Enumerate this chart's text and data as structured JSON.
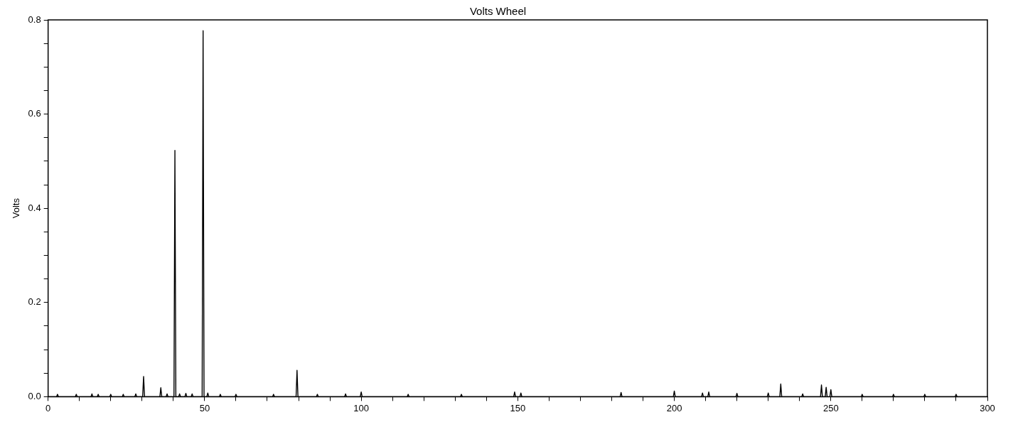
{
  "chart_data": {
    "type": "line",
    "title": "Volts Wheel",
    "ylabel": "Volts",
    "xlim": [
      0,
      300
    ],
    "xticks": [
      0,
      {
        "value": 10,
        "label": null
      },
      {
        "value": 20,
        "label": null
      },
      {
        "value": 30,
        "label": null
      },
      {
        "value": 40,
        "label": null
      },
      50,
      {
        "value": 60,
        "label": null
      },
      {
        "value": 70,
        "label": null
      },
      {
        "value": 80,
        "label": null
      },
      {
        "value": 90,
        "label": null
      },
      100,
      {
        "value": 110,
        "label": null
      },
      {
        "value": 120,
        "label": null
      },
      {
        "value": 130,
        "label": null
      },
      {
        "value": 140,
        "label": null
      },
      150,
      {
        "value": 160,
        "label": null
      },
      {
        "value": 170,
        "label": null
      },
      {
        "value": 180,
        "label": null
      },
      {
        "value": 190,
        "label": null
      },
      200,
      {
        "value": 210,
        "label": null
      },
      {
        "value": 220,
        "label": null
      },
      {
        "value": 230,
        "label": null
      },
      {
        "value": 240,
        "label": null
      },
      250,
      {
        "value": 260,
        "label": null
      },
      {
        "value": 270,
        "label": null
      },
      {
        "value": 280,
        "label": null
      },
      {
        "value": 290,
        "label": null
      },
      300
    ],
    "ylim": [
      0,
      0.8
    ],
    "yticks": [
      {
        "value": 0,
        "label": "0.0"
      },
      {
        "value": 0.05,
        "label": null
      },
      {
        "value": 0.1,
        "label": null
      },
      {
        "value": 0.15,
        "label": null
      },
      0.2,
      {
        "value": 0.25,
        "label": null
      },
      {
        "value": 0.3,
        "label": null
      },
      {
        "value": 0.35,
        "label": null
      },
      0.4,
      {
        "value": 0.45,
        "label": null
      },
      {
        "value": 0.5,
        "label": null
      },
      {
        "value": 0.55,
        "label": null
      },
      0.6,
      {
        "value": 0.65,
        "label": null
      },
      {
        "value": 0.7,
        "label": null
      },
      {
        "value": 0.75,
        "label": null
      },
      0.8
    ],
    "grid": false,
    "legend": false,
    "marker": "none",
    "line_style": "solid",
    "series": [
      {
        "color": "#000000",
        "x": [
          0,
          2.7,
          3,
          3.3,
          8.7,
          9,
          9.3,
          13.7,
          14,
          14.3,
          15.7,
          16,
          16.3,
          19.7,
          20,
          20.3,
          23.7,
          24,
          24.3,
          27.7,
          28,
          28.3,
          30.2,
          30.5,
          30.8,
          35.7,
          36,
          36.3,
          37.7,
          38,
          38.3,
          40.2,
          40.5,
          40.8,
          41.7,
          42,
          42.3,
          43.7,
          44,
          44.3,
          45.7,
          46,
          46.3,
          49.2,
          49.5,
          49.8,
          50.7,
          51,
          51.3,
          54.7,
          55,
          55.3,
          59.7,
          60,
          60.3,
          71.7,
          72,
          72.3,
          79.2,
          79.5,
          79.8,
          85.7,
          86,
          86.3,
          94.7,
          95,
          95.3,
          99.7,
          100,
          100.3,
          114.7,
          115,
          115.3,
          131.7,
          132,
          132.3,
          148.7,
          149,
          149.3,
          150.7,
          151,
          151.3,
          182.7,
          183,
          183.3,
          199.7,
          200,
          200.3,
          208.7,
          209,
          209.3,
          210.7,
          211,
          211.3,
          219.7,
          220,
          220.3,
          229.7,
          230,
          230.3,
          233.7,
          234,
          234.3,
          240.7,
          241,
          241.3,
          246.7,
          247,
          247.3,
          248.2,
          248.5,
          248.8,
          249.7,
          250,
          250.3,
          259.7,
          260,
          260.3,
          269.7,
          270,
          270.3,
          279.7,
          280,
          280.3,
          289.7,
          290,
          290.3,
          300
        ],
        "values": [
          0,
          0,
          0.005,
          0,
          0,
          0.005,
          0,
          0,
          0.006,
          0,
          0,
          0.005,
          0,
          0,
          0.005,
          0,
          0,
          0.005,
          0,
          0,
          0.006,
          0,
          0,
          0.043,
          0,
          0,
          0.019,
          0,
          0,
          0.006,
          0,
          0,
          0.523,
          0,
          0,
          0.006,
          0,
          0,
          0.007,
          0,
          0,
          0.006,
          0,
          0,
          0.777,
          0,
          0,
          0.008,
          0,
          0,
          0.005,
          0,
          0,
          0.005,
          0,
          0,
          0.005,
          0,
          0,
          0.056,
          0,
          0,
          0.005,
          0,
          0,
          0.006,
          0,
          0,
          0.01,
          0,
          0,
          0.005,
          0,
          0,
          0.005,
          0,
          0,
          0.01,
          0,
          0,
          0.008,
          0,
          0,
          0.009,
          0,
          0,
          0.012,
          0,
          0,
          0.008,
          0,
          0,
          0.01,
          0,
          0,
          0.007,
          0,
          0,
          0.008,
          0,
          0,
          0.027,
          0,
          0,
          0.006,
          0,
          0,
          0.025,
          0,
          0,
          0.02,
          0,
          0,
          0.015,
          0,
          0,
          0.005,
          0,
          0,
          0.005,
          0,
          0,
          0.005,
          0,
          0,
          0.005,
          0,
          0
        ]
      }
    ]
  }
}
